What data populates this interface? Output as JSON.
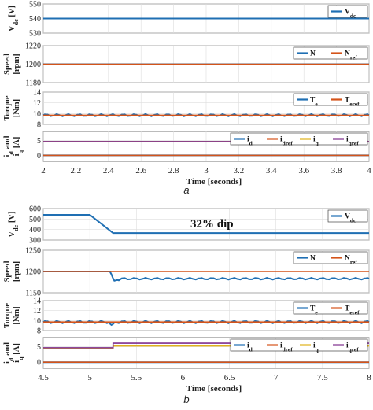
{
  "figure_labels": {
    "a": "a",
    "b": "b"
  },
  "chart_data": [
    {
      "type": "line",
      "figure": "a",
      "xlabel": "Time [seconds]",
      "xlim": [
        2,
        4
      ],
      "xticks": [
        "2",
        "2.2",
        "2.4",
        "2.6",
        "2.8",
        "3",
        "3.2",
        "3.4",
        "3.6",
        "3.8",
        "4"
      ],
      "colors": {
        "blue": "#1f6fb3",
        "orange": "#d4541a",
        "yellow": "#e0b21a",
        "purple": "#7e2f8e"
      },
      "subplots": [
        {
          "ylabel": [
            "V",
            "dc",
            " [V]"
          ],
          "yticks": [
            "530",
            "540",
            "550"
          ],
          "ylim": [
            530,
            550
          ],
          "series": [
            {
              "name": [
                "V",
                "dc"
              ],
              "color": "#1f6fb3",
              "x": [
                2,
                4
              ],
              "y": [
                540,
                540
              ]
            }
          ]
        },
        {
          "ylabel": [
            "Speed",
            "[rpm]"
          ],
          "yticks": [
            "1180",
            "1200",
            "1220"
          ],
          "ylim": [
            1180,
            1220
          ],
          "series": [
            {
              "name": [
                "N",
                ""
              ],
              "color": "#1f6fb3",
              "x": [
                2,
                4
              ],
              "y": [
                1200,
                1200
              ]
            },
            {
              "name": [
                "N",
                "ref"
              ],
              "color": "#d4541a",
              "x": [
                2,
                4
              ],
              "y": [
                1200,
                1200
              ]
            }
          ]
        },
        {
          "ylabel": [
            "Torque",
            "[Nm]"
          ],
          "yticks": [
            "8",
            "10",
            "12",
            "14"
          ],
          "ylim": [
            8,
            14
          ],
          "series": [
            {
              "name": [
                "T",
                "e"
              ],
              "color": "#1f6fb3",
              "x": [
                2,
                4
              ],
              "y": [
                9.7,
                9.7
              ],
              "ripple": 0.2
            },
            {
              "name": [
                "T",
                "eref"
              ],
              "color": "#d4541a",
              "x": [
                2,
                4
              ],
              "y": [
                9.7,
                9.7
              ]
            }
          ]
        },
        {
          "ylabel": [
            "i",
            "d",
            " and",
            "i",
            "q",
            " [A]"
          ],
          "yticks": [
            "0",
            "5"
          ],
          "ylim": [
            -2,
            8
          ],
          "series": [
            {
              "name": [
                "i",
                "d"
              ],
              "color": "#1f6fb3",
              "x": [
                2,
                4
              ],
              "y": [
                0,
                0
              ]
            },
            {
              "name": [
                "i",
                "dref"
              ],
              "color": "#d4541a",
              "x": [
                2,
                4
              ],
              "y": [
                0,
                0
              ]
            },
            {
              "name": [
                "i",
                "q"
              ],
              "color": "#e0b21a",
              "x": [
                2,
                4
              ],
              "y": [
                4.6,
                4.6
              ]
            },
            {
              "name": [
                "i",
                "qref"
              ],
              "color": "#7e2f8e",
              "x": [
                2,
                4
              ],
              "y": [
                4.6,
                4.6
              ]
            }
          ]
        }
      ]
    },
    {
      "type": "line",
      "figure": "b",
      "xlabel": "Time [seconds]",
      "xlim": [
        4.5,
        8
      ],
      "xticks": [
        "4.5",
        "5",
        "5.5",
        "6",
        "6.5",
        "7",
        "7.5",
        "8"
      ],
      "annotation": "32% dip",
      "subplots": [
        {
          "ylabel": [
            "V",
            "dc",
            " [V]"
          ],
          "yticks": [
            "300",
            "400",
            "500",
            "600"
          ],
          "ylim": [
            300,
            600
          ],
          "series": [
            {
              "name": [
                "V",
                "dc"
              ],
              "color": "#1f6fb3",
              "x": [
                4.5,
                5.0,
                5.25,
                8.0
              ],
              "y": [
                540,
                540,
                367,
                367
              ]
            }
          ]
        },
        {
          "ylabel": [
            "Speed",
            "[rpm]"
          ],
          "yticks": [
            "1150",
            "1200",
            "1250"
          ],
          "ylim": [
            1150,
            1250
          ],
          "series": [
            {
              "name": [
                "N",
                ""
              ],
              "color": "#1f6fb3",
              "x": [
                4.5,
                5.22,
                5.26,
                5.35,
                8.0
              ],
              "y": [
                1200,
                1200,
                1178,
                1183,
                1183
              ],
              "ripple": 2,
              "ripple_from": 5.3
            },
            {
              "name": [
                "N",
                "ref"
              ],
              "color": "#d4541a",
              "x": [
                4.5,
                8.0
              ],
              "y": [
                1200,
                1200
              ]
            }
          ]
        },
        {
          "ylabel": [
            "Torque",
            "[Nm]"
          ],
          "yticks": [
            "8",
            "10",
            "12",
            "14"
          ],
          "ylim": [
            8,
            14
          ],
          "series": [
            {
              "name": [
                "T",
                "e"
              ],
              "color": "#1f6fb3",
              "x": [
                4.5,
                5.2,
                5.24,
                5.27,
                8.0
              ],
              "y": [
                9.7,
                9.7,
                8.8,
                9.7,
                9.7
              ],
              "ripple": 0.25
            },
            {
              "name": [
                "T",
                "eref"
              ],
              "color": "#d4541a",
              "x": [
                4.5,
                8.0
              ],
              "y": [
                9.7,
                9.7
              ]
            }
          ]
        },
        {
          "ylabel": [
            "i",
            "d",
            " and",
            "i",
            "q",
            " [A]"
          ],
          "yticks": [
            "0",
            "5"
          ],
          "ylim": [
            -2,
            8
          ],
          "series": [
            {
              "name": [
                "i",
                "d"
              ],
              "color": "#1f6fb3",
              "x": [
                4.5,
                8.0
              ],
              "y": [
                0,
                0
              ]
            },
            {
              "name": [
                "i",
                "dref"
              ],
              "color": "#d4541a",
              "x": [
                4.5,
                8.0
              ],
              "y": [
                0,
                0
              ]
            },
            {
              "name": [
                "i",
                "q"
              ],
              "color": "#e0b21a",
              "x": [
                4.5,
                5.25,
                5.25,
                8.0
              ],
              "y": [
                4.5,
                4.5,
                5.3,
                5.3
              ]
            },
            {
              "name": [
                "i",
                "qref"
              ],
              "color": "#7e2f8e",
              "x": [
                4.5,
                5.25,
                5.25,
                8.0
              ],
              "y": [
                4.7,
                4.7,
                6.2,
                6.2
              ]
            }
          ]
        }
      ]
    }
  ]
}
